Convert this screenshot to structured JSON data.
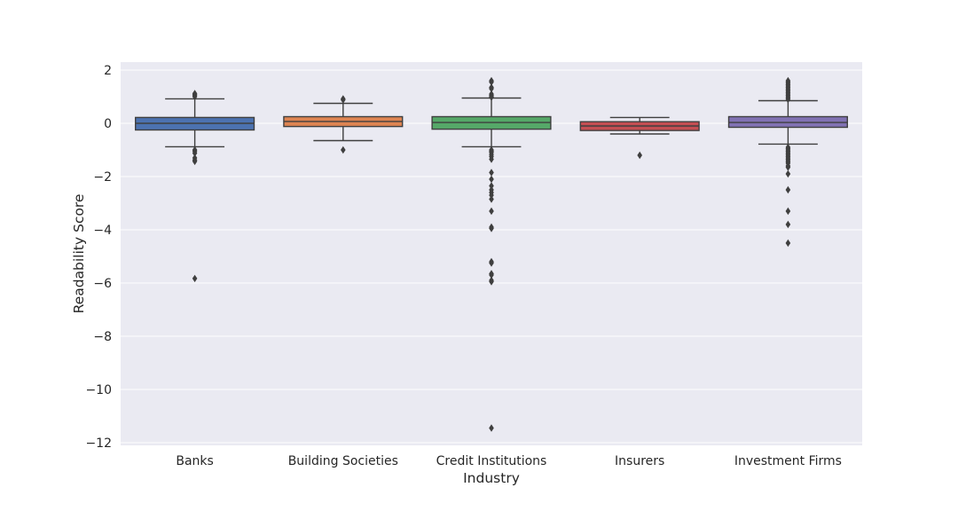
{
  "chart_data": {
    "type": "box",
    "title": "",
    "xlabel": "Industry",
    "ylabel": "Readability Score",
    "ylim": [
      -12.1,
      2.3
    ],
    "yticks": [
      2,
      0,
      -2,
      -4,
      -6,
      -8,
      -10,
      -12
    ],
    "ytick_labels": [
      "2",
      "0",
      "−2",
      "−4",
      "−6",
      "−8",
      "−10",
      "−12"
    ],
    "grid": true,
    "background": "#eaeaf2",
    "categories": [
      "Banks",
      "Building Societies",
      "Credit Institutions",
      "Insurers",
      "Investment Firms"
    ],
    "boxes": [
      {
        "name": "Banks",
        "color": "#4c72b0",
        "whisker_low": -0.88,
        "q1": -0.25,
        "median": 0.0,
        "q3": 0.22,
        "whisker_high": 0.92,
        "outliers": [
          1.12,
          1.08,
          1.04,
          1.0,
          -1.0,
          -1.05,
          -1.12,
          -1.3,
          -1.38,
          -1.43,
          -5.83
        ]
      },
      {
        "name": "Building Societies",
        "color": "#dd8452",
        "whisker_low": -0.65,
        "q1": -0.12,
        "median": 0.07,
        "q3": 0.25,
        "whisker_high": 0.75,
        "outliers": [
          0.92,
          0.88,
          -1.0
        ]
      },
      {
        "name": "Credit Institutions",
        "color": "#55a868",
        "whisker_low": -0.88,
        "q1": -0.22,
        "median": 0.03,
        "q3": 0.25,
        "whisker_high": 0.95,
        "outliers": [
          1.6,
          1.55,
          1.35,
          1.3,
          1.1,
          1.05,
          1.0,
          0.98,
          -1.0,
          -1.05,
          -1.1,
          -1.18,
          -1.25,
          -1.35,
          -1.85,
          -2.1,
          -2.35,
          -2.5,
          -2.6,
          -2.7,
          -2.85,
          -3.3,
          -3.9,
          -3.95,
          -5.2,
          -5.25,
          -5.65,
          -5.7,
          -5.9,
          -5.95,
          -11.45
        ]
      },
      {
        "name": "Insurers",
        "color": "#c44e52",
        "whisker_low": -0.4,
        "q1": -0.27,
        "median": -0.1,
        "q3": 0.06,
        "whisker_high": 0.22,
        "outliers": [
          -1.2
        ]
      },
      {
        "name": "Investment Firms",
        "color": "#8172b3",
        "whisker_low": -0.78,
        "q1": -0.15,
        "median": 0.03,
        "q3": 0.25,
        "whisker_high": 0.85,
        "outliers": [
          1.6,
          1.55,
          1.5,
          1.45,
          1.4,
          1.35,
          1.3,
          1.25,
          1.2,
          1.15,
          1.1,
          1.05,
          1.0,
          0.95,
          0.9,
          -0.9,
          -0.95,
          -1.0,
          -1.05,
          -1.1,
          -1.15,
          -1.2,
          -1.25,
          -1.3,
          -1.35,
          -1.4,
          -1.45,
          -1.5,
          -1.6,
          -1.65,
          -1.9,
          -2.5,
          -3.3,
          -3.8,
          -4.5
        ]
      }
    ]
  }
}
